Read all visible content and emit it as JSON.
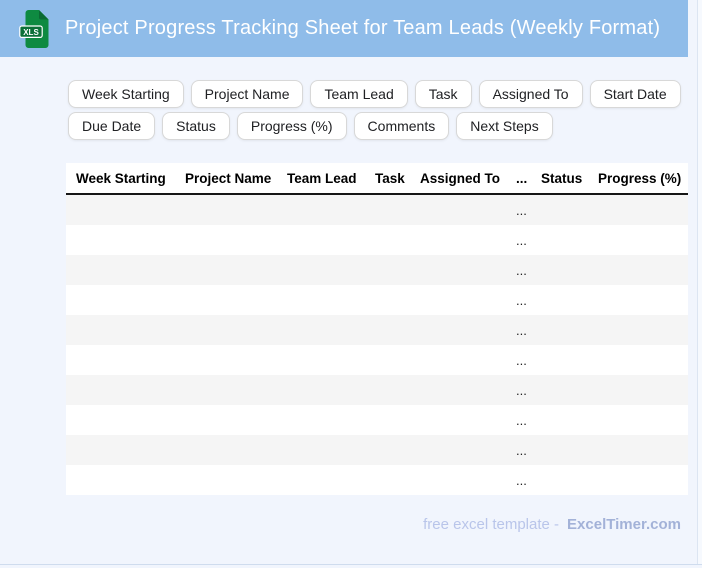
{
  "header": {
    "title": "Project Progress Tracking Sheet for Team Leads (Weekly Format)",
    "icon_label": "XLS",
    "bar_color": "#8fbce9",
    "icon_color": "#0e8a41"
  },
  "chips": {
    "row1": [
      "Week Starting",
      "Project Name",
      "Team Lead",
      "Task",
      "Assigned To",
      "Start Date"
    ],
    "row2": [
      "Due Date",
      "Status",
      "Progress (%)",
      "Comments",
      "Next Steps"
    ]
  },
  "table": {
    "columns": [
      "Week Starting",
      "Project Name",
      "Team Lead",
      "Task",
      "Assigned To",
      "...",
      "Status",
      "Progress (%)"
    ],
    "ellipsis_column": "...",
    "row_placeholder": "...",
    "row_count": 10,
    "stripe_color": "#f5f5f5"
  },
  "footer": {
    "text": "free excel template -",
    "brand": "ExcelTimer.com"
  }
}
